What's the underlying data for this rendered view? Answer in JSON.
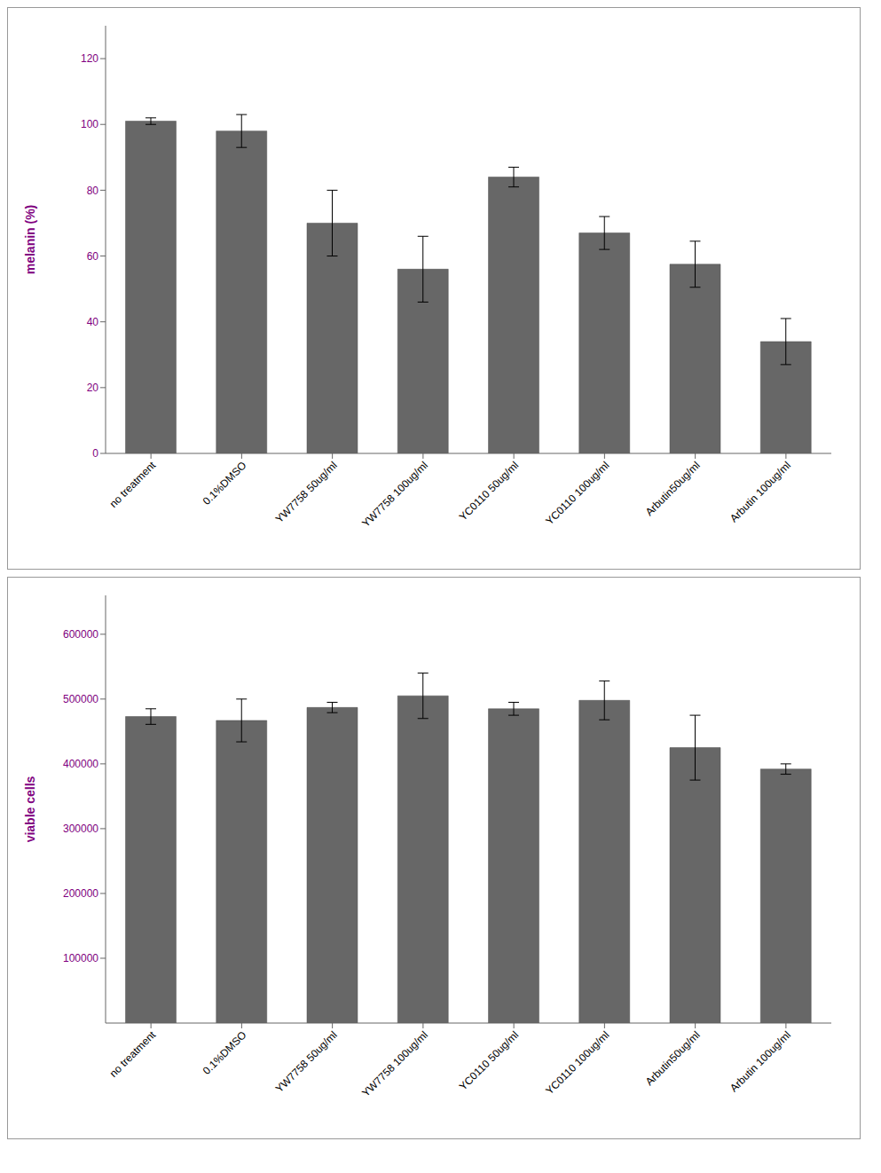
{
  "chart_data": [
    {
      "type": "bar",
      "categories": [
        "no treatment",
        "0.1%DMSO",
        "YW7758 50ug/ml",
        "YW7758 100ug/ml",
        "YC0110 50ug/ml",
        "YC0110 100ug/ml",
        "Arbutin50ug/ml",
        "Arbutin 100ug/ml"
      ],
      "values": [
        101,
        98,
        70,
        56,
        84,
        67,
        57.5,
        34
      ],
      "errors": [
        1,
        5,
        10,
        10,
        3,
        5,
        7,
        7
      ],
      "ylabel": "melanin (%)",
      "ylim": [
        0,
        130
      ],
      "yticks": [
        0,
        20,
        40,
        60,
        80,
        100,
        120
      ],
      "color": "#676767",
      "grid": false
    },
    {
      "type": "bar",
      "categories": [
        "no treatment",
        "0.1%DMSO",
        "YW7758 50ug/ml",
        "YW7758 100ug/ml",
        "YC0110 50ug/ml",
        "YC0110 100ug/ml",
        "Arbutin50ug/ml",
        "Arbutin 100ug/ml"
      ],
      "values": [
        473000,
        467000,
        487000,
        505000,
        485000,
        498000,
        425000,
        392000
      ],
      "errors": [
        12000,
        33000,
        8000,
        35000,
        10000,
        30000,
        50000,
        8000
      ],
      "ylabel": "viable cells",
      "ylim": [
        0,
        660000
      ],
      "yticks": [
        100000,
        200000,
        300000,
        400000,
        500000,
        600000
      ],
      "color": "#676767",
      "grid": false
    }
  ]
}
